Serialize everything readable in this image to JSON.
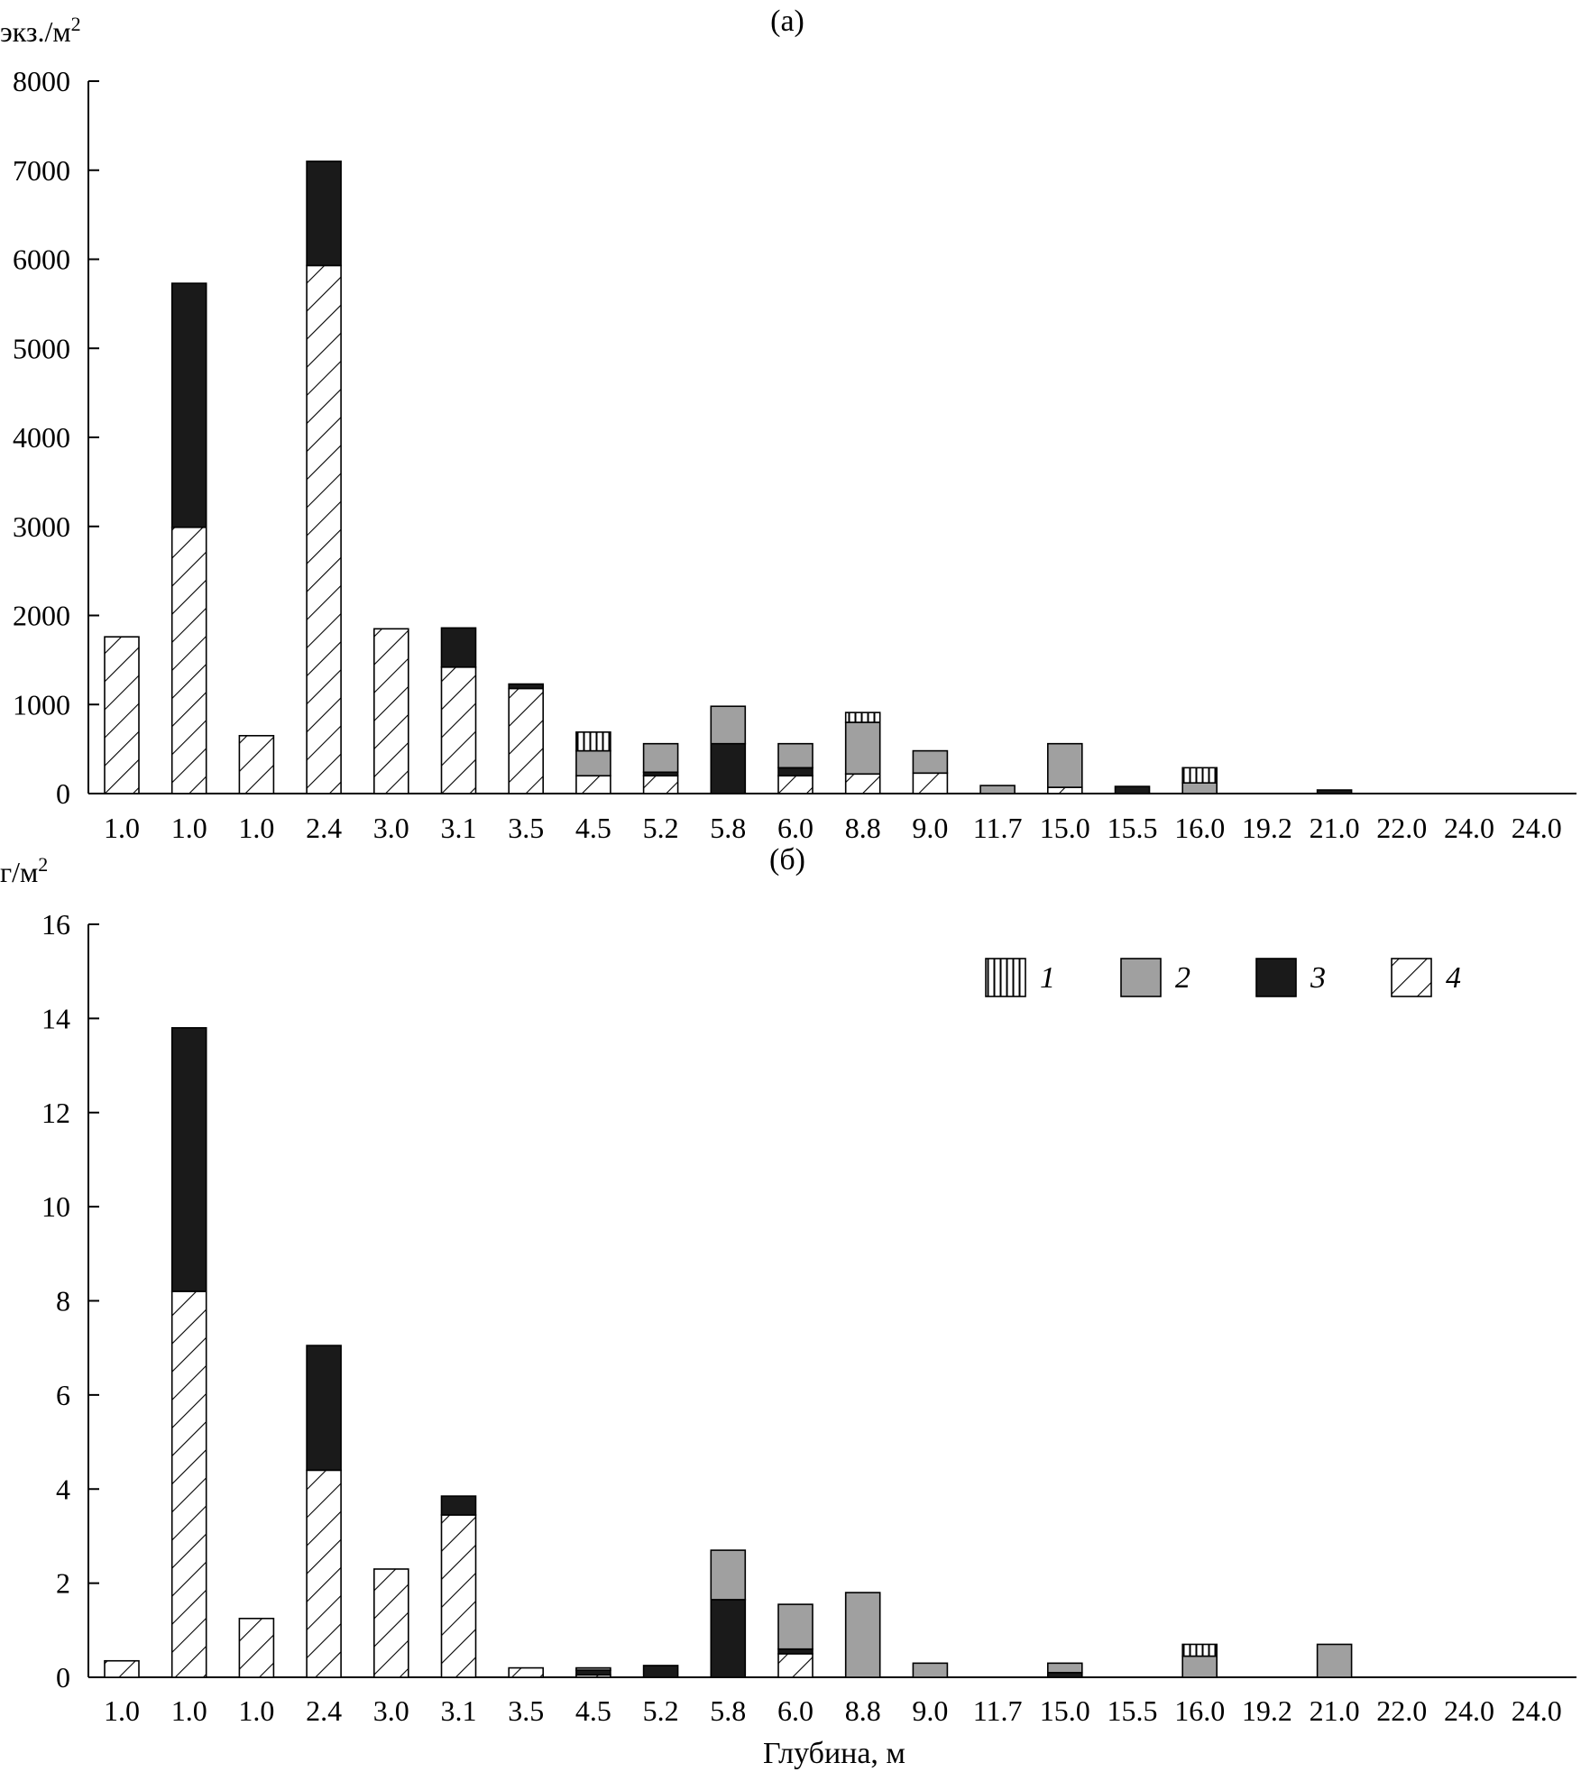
{
  "chart_data": [
    {
      "type": "bar",
      "stacked": true,
      "panel_title": "(а)",
      "ylabel": "экз./м2",
      "ylim": [
        0,
        8000
      ],
      "yticks": [
        0,
        1000,
        2000,
        3000,
        4000,
        5000,
        6000,
        7000,
        8000
      ],
      "categories": [
        "1.0",
        "1.0",
        "1.0",
        "2.4",
        "3.0",
        "3.1",
        "3.5",
        "4.5",
        "5.2",
        "5.8",
        "6.0",
        "8.8",
        "9.0",
        "11.7",
        "15.0",
        "15.5",
        "16.0",
        "19.2",
        "21.0",
        "22.0",
        "24.0",
        "24.0"
      ],
      "series": [
        {
          "name": "4",
          "values": [
            1760,
            2990,
            650,
            5930,
            1850,
            1420,
            1180,
            200,
            200,
            0,
            200,
            220,
            230,
            0,
            70,
            0,
            0,
            0,
            0,
            0,
            0,
            0
          ]
        },
        {
          "name": "3",
          "values": [
            0,
            2740,
            0,
            1170,
            0,
            440,
            50,
            0,
            40,
            560,
            90,
            0,
            0,
            0,
            0,
            80,
            0,
            0,
            40,
            0,
            0,
            0
          ]
        },
        {
          "name": "2",
          "values": [
            0,
            0,
            0,
            0,
            0,
            0,
            0,
            280,
            320,
            420,
            270,
            580,
            250,
            90,
            490,
            0,
            120,
            0,
            0,
            0,
            0,
            0
          ]
        },
        {
          "name": "1",
          "values": [
            0,
            0,
            0,
            0,
            0,
            0,
            0,
            210,
            0,
            0,
            0,
            110,
            0,
            0,
            0,
            0,
            170,
            0,
            0,
            0,
            0,
            0
          ]
        }
      ],
      "grid": false,
      "legend": "none"
    },
    {
      "type": "bar",
      "stacked": true,
      "panel_title": "(б)",
      "ylabel": "г/м2",
      "xlabel": "Глубина, м",
      "ylim": [
        0,
        16
      ],
      "yticks": [
        0,
        2,
        4,
        6,
        8,
        10,
        12,
        14,
        16
      ],
      "categories": [
        "1.0",
        "1.0",
        "1.0",
        "2.4",
        "3.0",
        "3.1",
        "3.5",
        "4.5",
        "5.2",
        "5.8",
        "6.0",
        "8.8",
        "9.0",
        "11.7",
        "15.0",
        "15.5",
        "16.0",
        "19.2",
        "21.0",
        "22.0",
        "24.0",
        "24.0"
      ],
      "series": [
        {
          "name": "4",
          "values": [
            0.35,
            8.2,
            1.25,
            4.4,
            2.3,
            3.45,
            0.2,
            0.05,
            0,
            0,
            0.5,
            0,
            0,
            0,
            0,
            0,
            0,
            0,
            0,
            0,
            0,
            0
          ]
        },
        {
          "name": "3",
          "values": [
            0,
            5.6,
            0,
            2.65,
            0,
            0.4,
            0,
            0.1,
            0.25,
            1.65,
            0.1,
            0,
            0,
            0,
            0.1,
            0,
            0,
            0,
            0,
            0,
            0,
            0
          ]
        },
        {
          "name": "2",
          "values": [
            0,
            0,
            0,
            0,
            0,
            0,
            0,
            0.05,
            0,
            1.05,
            0.95,
            1.8,
            0.3,
            0,
            0.2,
            0,
            0.45,
            0,
            0.7,
            0,
            0,
            0
          ]
        },
        {
          "name": "1",
          "values": [
            0,
            0,
            0,
            0,
            0,
            0,
            0,
            0,
            0,
            0,
            0,
            0,
            0,
            0,
            0,
            0,
            0.25,
            0,
            0,
            0,
            0,
            0
          ]
        }
      ],
      "grid": false,
      "legend": "top-right",
      "legend_items": [
        "1",
        "2",
        "3",
        "4"
      ]
    }
  ],
  "style": {
    "series_fills": {
      "1": "vertical-hatch",
      "2": "#a0a0a0",
      "3": "#1a1a1a",
      "4": "diagonal-hatch"
    }
  }
}
